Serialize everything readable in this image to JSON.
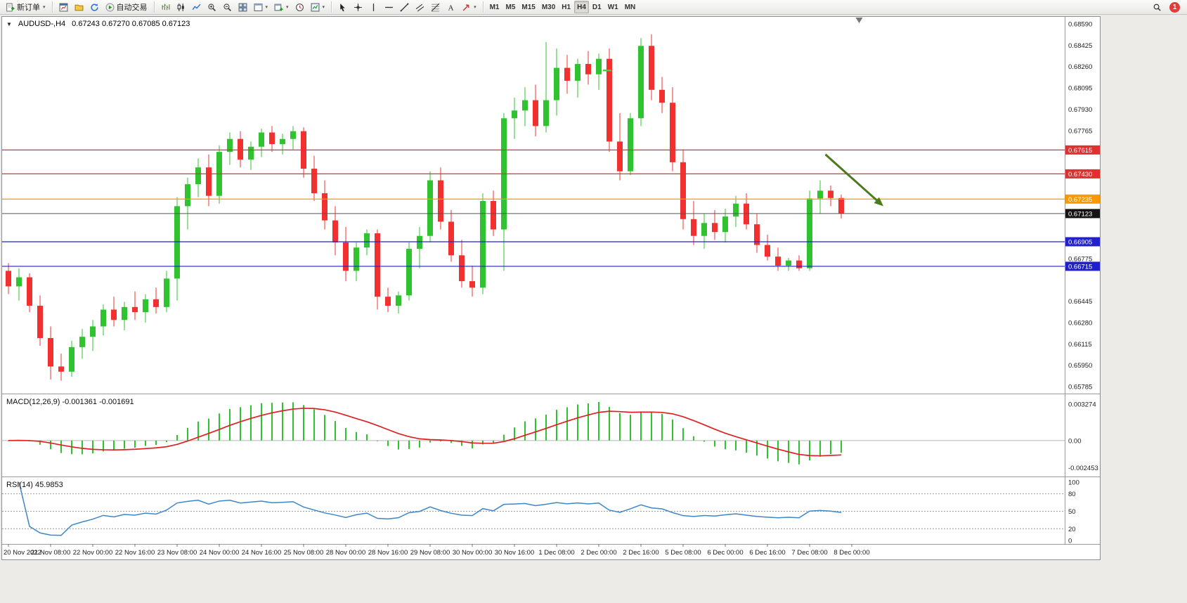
{
  "toolbar": {
    "notification_count": "1",
    "groups": [
      {
        "name": "trade",
        "items": [
          {
            "name": "new-order-button",
            "icon": "new-order",
            "label": "新订单",
            "caret": true
          }
        ]
      },
      {
        "name": "windows",
        "items": [
          {
            "name": "charts-button",
            "icon": "chart-window"
          },
          {
            "name": "profiles-button",
            "icon": "profiles"
          },
          {
            "name": "refresh-button",
            "icon": "refresh"
          },
          {
            "name": "auto-trading-button",
            "icon": "play",
            "label": "自动交易"
          }
        ]
      },
      {
        "name": "chart-tools",
        "items": [
          {
            "name": "bar-chart-button",
            "icon": "bars"
          },
          {
            "name": "candlestick-chart-button",
            "icon": "candles"
          },
          {
            "name": "line-chart-button",
            "icon": "line-chart"
          },
          {
            "name": "zoom-in-button",
            "icon": "zoom-in"
          },
          {
            "name": "zoom-out-button",
            "icon": "zoom-out"
          },
          {
            "name": "tile-windows-button",
            "icon": "tile"
          },
          {
            "name": "templates-button",
            "icon": "template",
            "caret": true
          },
          {
            "name": "new-chart-button",
            "icon": "new-chart",
            "caret": true
          },
          {
            "name": "chart-shift-button",
            "icon": "clock"
          },
          {
            "name": "indicators-button",
            "icon": "strategy",
            "caret": true
          }
        ]
      },
      {
        "name": "objects",
        "items": [
          {
            "name": "cursor-button",
            "icon": "cursor"
          },
          {
            "name": "crosshair-button",
            "icon": "crosshair"
          },
          {
            "name": "vertical-line-button",
            "icon": "vline"
          },
          {
            "name": "horizontal-line-button",
            "icon": "hline"
          },
          {
            "name": "trendline-button",
            "icon": "trendline"
          },
          {
            "name": "equidistant-channel-button",
            "icon": "channel"
          },
          {
            "name": "fibonacci-button",
            "icon": "fibo"
          },
          {
            "name": "text-button",
            "icon": "text"
          },
          {
            "name": "arrows-button",
            "icon": "arrow-obj",
            "caret": true
          }
        ]
      },
      {
        "name": "timeframes",
        "items": [
          {
            "name": "timeframe-m1",
            "label": "M1"
          },
          {
            "name": "timeframe-m5",
            "label": "M5"
          },
          {
            "name": "timeframe-m15",
            "label": "M15"
          },
          {
            "name": "timeframe-m30",
            "label": "M30"
          },
          {
            "name": "timeframe-h1",
            "label": "H1"
          },
          {
            "name": "timeframe-h4",
            "label": "H4",
            "active": true
          },
          {
            "name": "timeframe-d1",
            "label": "D1"
          },
          {
            "name": "timeframe-w1",
            "label": "W1"
          },
          {
            "name": "timeframe-mn",
            "label": "MN"
          }
        ]
      }
    ]
  },
  "chart_data": {
    "type": "candlestick",
    "title": "AUDUSD-,H4",
    "ohlc_text": "0.67243 0.67270 0.67085 0.67123",
    "colors": {
      "up": "#2fc42f",
      "down": "#f23030",
      "background": "#ffffff"
    },
    "price_axis": {
      "max": 0.6859,
      "min": 0.65785,
      "ticks": [
        "0.68590",
        "0.68425",
        "0.68260",
        "0.68095",
        "0.67930",
        "0.67765",
        "0.66775",
        "0.66445",
        "0.66280",
        "0.66115",
        "0.65950",
        "0.65785"
      ]
    },
    "time_axis": {
      "bars_per_label": 4,
      "labels": [
        "20 Nov 2022",
        "21 Nov 08:00",
        "22 Nov 00:00",
        "22 Nov 16:00",
        "23 Nov 08:00",
        "24 Nov 00:00",
        "24 Nov 16:00",
        "25 Nov 08:00",
        "28 Nov 00:00",
        "28 Nov 16:00",
        "29 Nov 08:00",
        "30 Nov 00:00",
        "30 Nov 16:00",
        "1 Dec 08:00",
        "2 Dec 00:00",
        "2 Dec 16:00",
        "5 Dec 08:00",
        "6 Dec 00:00",
        "6 Dec 16:00",
        "7 Dec 08:00",
        "8 Dec 00:00"
      ]
    },
    "candles": [
      [
        0.6668,
        0.6674,
        0.665,
        0.6656
      ],
      [
        0.6656,
        0.667,
        0.6645,
        0.6663
      ],
      [
        0.6663,
        0.6666,
        0.6636,
        0.6641
      ],
      [
        0.6641,
        0.6649,
        0.661,
        0.6616
      ],
      [
        0.6616,
        0.6625,
        0.6584,
        0.6594
      ],
      [
        0.6594,
        0.6604,
        0.6583,
        0.659
      ],
      [
        0.659,
        0.6614,
        0.6586,
        0.6609
      ],
      [
        0.6609,
        0.6623,
        0.66,
        0.6617
      ],
      [
        0.6617,
        0.663,
        0.6606,
        0.6625
      ],
      [
        0.6625,
        0.6642,
        0.6618,
        0.6638
      ],
      [
        0.6638,
        0.6648,
        0.6625,
        0.663
      ],
      [
        0.663,
        0.6644,
        0.6622,
        0.664
      ],
      [
        0.664,
        0.6652,
        0.663,
        0.6636
      ],
      [
        0.6636,
        0.665,
        0.6628,
        0.6646
      ],
      [
        0.6646,
        0.6655,
        0.6635,
        0.664
      ],
      [
        0.664,
        0.6668,
        0.6636,
        0.6662
      ],
      [
        0.6662,
        0.6725,
        0.6645,
        0.6718
      ],
      [
        0.6718,
        0.674,
        0.67,
        0.6735
      ],
      [
        0.6735,
        0.6755,
        0.6725,
        0.6748
      ],
      [
        0.6748,
        0.6758,
        0.6718,
        0.6726
      ],
      [
        0.6726,
        0.6765,
        0.672,
        0.676
      ],
      [
        0.676,
        0.6775,
        0.675,
        0.677
      ],
      [
        0.677,
        0.6776,
        0.6748,
        0.6754
      ],
      [
        0.6754,
        0.6768,
        0.6746,
        0.6764
      ],
      [
        0.6764,
        0.6778,
        0.6756,
        0.6775
      ],
      [
        0.6775,
        0.678,
        0.676,
        0.6766
      ],
      [
        0.6766,
        0.6774,
        0.6758,
        0.677
      ],
      [
        0.677,
        0.678,
        0.6762,
        0.6776
      ],
      [
        0.6776,
        0.6779,
        0.674,
        0.6747
      ],
      [
        0.6747,
        0.6757,
        0.6722,
        0.6728
      ],
      [
        0.6728,
        0.6738,
        0.67,
        0.6707
      ],
      [
        0.6707,
        0.6718,
        0.668,
        0.669
      ],
      [
        0.669,
        0.6702,
        0.666,
        0.6668
      ],
      [
        0.6668,
        0.669,
        0.666,
        0.6686
      ],
      [
        0.6686,
        0.67,
        0.668,
        0.6697
      ],
      [
        0.6697,
        0.67,
        0.6638,
        0.6648
      ],
      [
        0.6648,
        0.6655,
        0.6636,
        0.6641
      ],
      [
        0.6641,
        0.6652,
        0.6635,
        0.6649
      ],
      [
        0.6649,
        0.669,
        0.6645,
        0.6685
      ],
      [
        0.6685,
        0.6702,
        0.667,
        0.6695
      ],
      [
        0.6695,
        0.6745,
        0.669,
        0.6738
      ],
      [
        0.6738,
        0.6748,
        0.67,
        0.6706
      ],
      [
        0.6706,
        0.6715,
        0.6675,
        0.668
      ],
      [
        0.668,
        0.6692,
        0.6655,
        0.666
      ],
      [
        0.666,
        0.6672,
        0.6648,
        0.6655
      ],
      [
        0.6655,
        0.6728,
        0.665,
        0.6722
      ],
      [
        0.6722,
        0.673,
        0.6695,
        0.67
      ],
      [
        0.67,
        0.679,
        0.6668,
        0.6786
      ],
      [
        0.6786,
        0.6802,
        0.677,
        0.6792
      ],
      [
        0.6792,
        0.681,
        0.678,
        0.68
      ],
      [
        0.68,
        0.6812,
        0.6772,
        0.678
      ],
      [
        0.678,
        0.6845,
        0.6775,
        0.68
      ],
      [
        0.68,
        0.684,
        0.6788,
        0.6825
      ],
      [
        0.6825,
        0.6835,
        0.6805,
        0.6815
      ],
      [
        0.6815,
        0.6832,
        0.6802,
        0.6828
      ],
      [
        0.6828,
        0.6838,
        0.6812,
        0.682
      ],
      [
        0.682,
        0.6836,
        0.6808,
        0.6832
      ],
      [
        0.6832,
        0.684,
        0.676,
        0.6768
      ],
      [
        0.6768,
        0.679,
        0.6738,
        0.6745
      ],
      [
        0.6745,
        0.679,
        0.6742,
        0.6786
      ],
      [
        0.6786,
        0.6848,
        0.678,
        0.6842
      ],
      [
        0.6842,
        0.6851,
        0.68,
        0.6808
      ],
      [
        0.6808,
        0.6818,
        0.679,
        0.6798
      ],
      [
        0.6798,
        0.681,
        0.6745,
        0.6752
      ],
      [
        0.6752,
        0.6762,
        0.67,
        0.6708
      ],
      [
        0.6708,
        0.6722,
        0.6688,
        0.6695
      ],
      [
        0.6695,
        0.6712,
        0.6685,
        0.6705
      ],
      [
        0.6705,
        0.6715,
        0.6692,
        0.6698
      ],
      [
        0.6698,
        0.6716,
        0.669,
        0.671
      ],
      [
        0.671,
        0.6726,
        0.6702,
        0.672
      ],
      [
        0.672,
        0.6728,
        0.67,
        0.6704
      ],
      [
        0.6704,
        0.6712,
        0.6682,
        0.6688
      ],
      [
        0.6688,
        0.6696,
        0.6676,
        0.6679
      ],
      [
        0.6679,
        0.6686,
        0.6668,
        0.6672
      ],
      [
        0.6672,
        0.6678,
        0.6668,
        0.6676
      ],
      [
        0.6676,
        0.668,
        0.6668,
        0.667
      ],
      [
        0.667,
        0.673,
        0.6668,
        0.6724
      ],
      [
        0.6724,
        0.6738,
        0.6712,
        0.673
      ],
      [
        0.673,
        0.6734,
        0.6718,
        0.67243
      ],
      [
        0.67243,
        0.6727,
        0.67085,
        0.67123
      ]
    ],
    "hlines": [
      {
        "price": 0.67615,
        "label": "0.67615",
        "color": "#e03030"
      },
      {
        "price": 0.6743,
        "label": "0.67430",
        "color": "#e03030"
      },
      {
        "price": 0.67235,
        "label": "0.67235",
        "color": "#ff9800"
      },
      {
        "price": 0.66905,
        "label": "0.66905",
        "color": "#2020cc"
      },
      {
        "price": 0.66715,
        "label": "0.66715",
        "color": "#2020cc"
      }
    ],
    "current_price": {
      "value": 0.67123,
      "label": "0.67123",
      "line_color": "#555555",
      "badge_color": "#141414"
    },
    "annotations": {
      "arrow": {
        "from": {
          "bar": 77.5,
          "price": 0.6758
        },
        "to": {
          "bar": 83,
          "price": 0.6718
        },
        "color": "#4b7a1f",
        "width": 3
      },
      "dash_marker": {
        "bar": 56.8,
        "price": 0.6823,
        "color": "#3fd23f"
      },
      "shift_marker_bar": 80.7
    },
    "macd": {
      "label": "MACD(12,26,9) -0.001361 -0.001691",
      "params": [
        12,
        26,
        9
      ],
      "current_macd": -0.001361,
      "current_signal": -0.001691,
      "histogram_color": "#2fc42f",
      "signal_color": "#e02020",
      "axis_ticks": [
        {
          "label": "0.003274",
          "value": 0.003274
        },
        {
          "label": "0.00",
          "value": 0
        },
        {
          "label": "-0.002453",
          "value": -0.002453
        }
      ]
    },
    "rsi": {
      "label": "RSI(14) 45.9853",
      "period": 14,
      "current": 45.9853,
      "levels": [
        80,
        50,
        20
      ],
      "line_color": "#3d86c8",
      "axis_ticks": [
        {
          "label": "100",
          "value": 100
        },
        {
          "label": "80",
          "value": 80
        },
        {
          "label": "50",
          "value": 50
        },
        {
          "label": "20",
          "value": 20
        },
        {
          "label": "0",
          "value": 0
        }
      ]
    }
  }
}
